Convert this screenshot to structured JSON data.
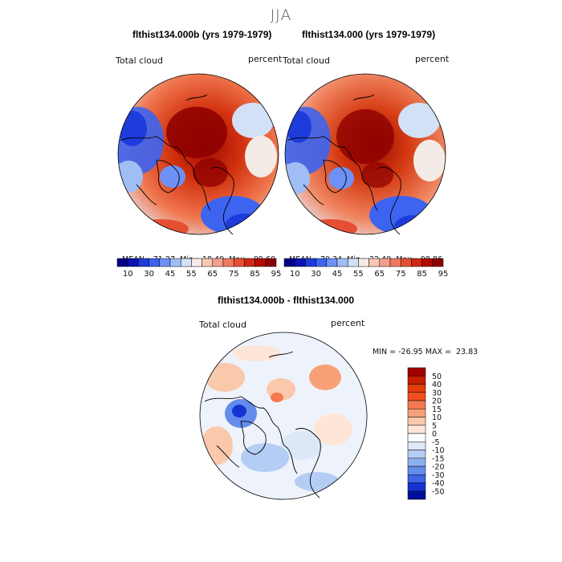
{
  "figure": {
    "season": "JJA",
    "top_left": {
      "title": "flthist134.000b (yrs 1979-1979)",
      "var_label": "Total cloud",
      "units": "percent",
      "mean_label": "MEAN=",
      "mean": "71.27",
      "min_label": "Min=",
      "min": "18.49",
      "max_label": "Max=",
      "max": "99.60"
    },
    "top_right": {
      "title": "flthist134.000 (yrs 1979-1979)",
      "var_label": "Total cloud",
      "units": "percent",
      "mean_label": "MEAN=",
      "mean": "70.34",
      "min_label": "Min=",
      "min": "22.40",
      "max_label": "Max=",
      "max": "98.86"
    },
    "diff": {
      "title": "flthist134.000b - flthist134.000",
      "var_label": "Total cloud",
      "units": "percent",
      "minmax_text": "MIN = -26.95 MAX =  23.83"
    }
  },
  "colorbar_abs": {
    "tick_labels": [
      "10",
      "30",
      "45",
      "55",
      "65",
      "75",
      "85",
      "95"
    ],
    "colors": [
      "#000087",
      "#0a14b4",
      "#1e3cdc",
      "#3c64f0",
      "#6e91f5",
      "#a0bef5",
      "#d2e1f5",
      "#f5ebe6",
      "#fac8b4",
      "#f5a08c",
      "#f07860",
      "#e65032",
      "#d22814",
      "#b40a00",
      "#8c0000"
    ]
  },
  "colorbar_diff": {
    "tick_labels": [
      "50",
      "40",
      "30",
      "20",
      "15",
      "10",
      "5",
      "0",
      "-5",
      "-10",
      "-15",
      "-20",
      "-30",
      "-40",
      "-50"
    ],
    "colors_top_to_bottom": [
      "#a00000",
      "#c81e00",
      "#e13c0a",
      "#f0501e",
      "#f57850",
      "#f8a078",
      "#fac8aa",
      "#fde6d7",
      "#ffffff",
      "#dce8f8",
      "#b4cdf5",
      "#8cafef",
      "#648ceb",
      "#3c64e6",
      "#1432d2",
      "#000f9b"
    ]
  },
  "chart_data": [
    {
      "type": "heatmap",
      "projection": "polar stereographic (north polar)",
      "title": "flthist134.000b (yrs 1979-1979)",
      "variable": "Total cloud",
      "units": "percent",
      "season": "JJA",
      "stats": {
        "mean": 71.27,
        "min": 18.49,
        "max": 99.6
      },
      "colorbar_levels": [
        10,
        30,
        45,
        55,
        65,
        75,
        85,
        95
      ]
    },
    {
      "type": "heatmap",
      "projection": "polar stereographic (north polar)",
      "title": "flthist134.000 (yrs 1979-1979)",
      "variable": "Total cloud",
      "units": "percent",
      "season": "JJA",
      "stats": {
        "mean": 70.34,
        "min": 22.4,
        "max": 98.86
      },
      "colorbar_levels": [
        10,
        30,
        45,
        55,
        65,
        75,
        85,
        95
      ]
    },
    {
      "type": "heatmap",
      "projection": "polar stereographic (north polar)",
      "title": "flthist134.000b - flthist134.000",
      "variable": "Total cloud",
      "units": "percent",
      "season": "JJA",
      "stats": {
        "min": -26.95,
        "max": 23.83
      },
      "colorbar_levels": [
        50,
        40,
        30,
        20,
        15,
        10,
        5,
        0,
        -5,
        -10,
        -15,
        -20,
        -30,
        -40,
        -50
      ]
    }
  ]
}
